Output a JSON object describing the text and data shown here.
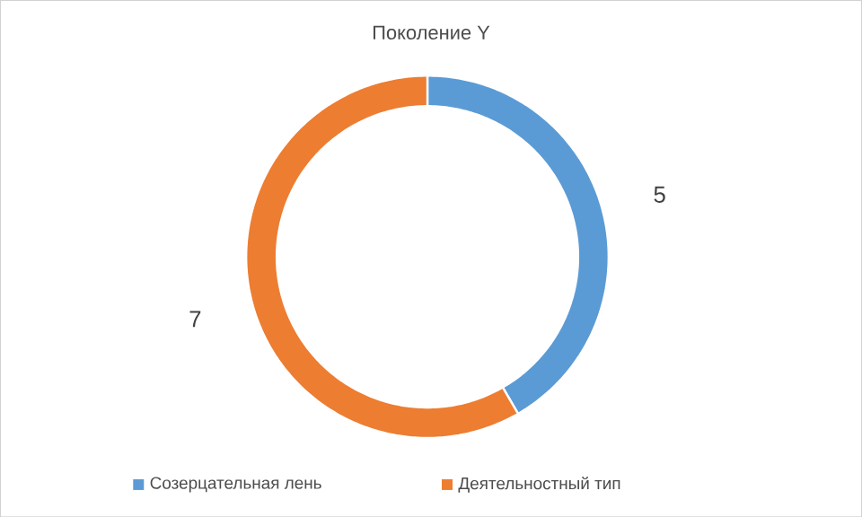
{
  "chart_data": {
    "type": "donut",
    "title": "Поколение Y",
    "categories": [
      "Созерцательная лень",
      "Деятельностный тип"
    ],
    "values": [
      5,
      7
    ],
    "colors": [
      "#5b9bd5",
      "#ed7d31"
    ],
    "data_labels": true,
    "legend": "bottom"
  }
}
